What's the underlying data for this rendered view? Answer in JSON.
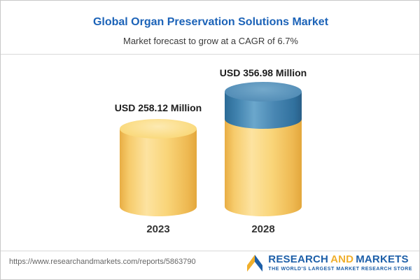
{
  "header": {
    "title": "Global Organ Preservation Solutions Market",
    "subtitle": "Market forecast to grow at a CAGR of 6.7%"
  },
  "chart_data": {
    "type": "bar",
    "categories": [
      "2023",
      "2028"
    ],
    "values": [
      258.12,
      356.98
    ],
    "value_labels": [
      "USD 258.12 Million",
      "USD 356.98 Million"
    ],
    "unit": "USD Million",
    "title": "Global Organ Preservation Solutions Market",
    "subtitle": "Market forecast to grow at a CAGR of 6.7%",
    "cagr": "6.7%",
    "bar_colors": {
      "base": "#F7CF6F",
      "growth": "#3F7FA9"
    },
    "ylim": [
      0,
      356.98
    ],
    "grid": false,
    "legend": "none"
  },
  "footer": {
    "url": "https://www.researchandmarkets.com/reports/5863790",
    "brand": {
      "word1": "RESEARCH",
      "word2": "AND",
      "word3": "MARKETS",
      "tagline": "THE WORLD'S LARGEST MARKET RESEARCH STORE"
    }
  }
}
